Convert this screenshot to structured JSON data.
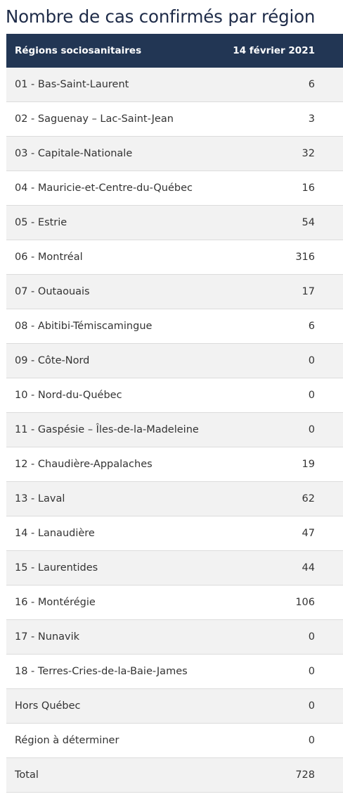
{
  "title": "Nombre de cas confirmés par région",
  "table": {
    "headers": [
      "Régions sociosanitaires",
      "14 février 2021"
    ],
    "rows": [
      {
        "region": "01 - Bas-Saint-Laurent",
        "value": "6"
      },
      {
        "region": "02 - Saguenay – Lac-Saint-Jean",
        "value": "3"
      },
      {
        "region": "03 - Capitale-Nationale",
        "value": "32"
      },
      {
        "region": "04 - Mauricie-et-Centre-du-Québec",
        "value": "16"
      },
      {
        "region": "05 - Estrie",
        "value": "54"
      },
      {
        "region": "06 - Montréal",
        "value": "316"
      },
      {
        "region": "07 - Outaouais",
        "value": "17"
      },
      {
        "region": "08 - Abitibi-Témiscamingue",
        "value": "6"
      },
      {
        "region": "09 - Côte-Nord",
        "value": "0"
      },
      {
        "region": "10 - Nord-du-Québec",
        "value": "0"
      },
      {
        "region": "11 - Gaspésie – Îles-de-la-Madeleine",
        "value": "0"
      },
      {
        "region": "12 - Chaudière-Appalaches",
        "value": "19"
      },
      {
        "region": "13 - Laval",
        "value": "62"
      },
      {
        "region": "14 - Lanaudière",
        "value": "47"
      },
      {
        "region": "15 - Laurentides",
        "value": "44"
      },
      {
        "region": "16 - Montérégie",
        "value": "106"
      },
      {
        "region": "17 - Nunavik",
        "value": "0"
      },
      {
        "region": "18 - Terres-Cries-de-la-Baie-James",
        "value": "0"
      },
      {
        "region": "Hors Québec",
        "value": "0"
      },
      {
        "region": "Région à déterminer",
        "value": "0"
      },
      {
        "region": "Total",
        "value": "728"
      }
    ]
  },
  "colors": {
    "title": "#1e2b48",
    "header_bg": "#223654",
    "header_text": "#ffffff",
    "row_alt_bg": "#f2f2f2",
    "row_text": "#333333",
    "border": "#dcdcdc"
  }
}
